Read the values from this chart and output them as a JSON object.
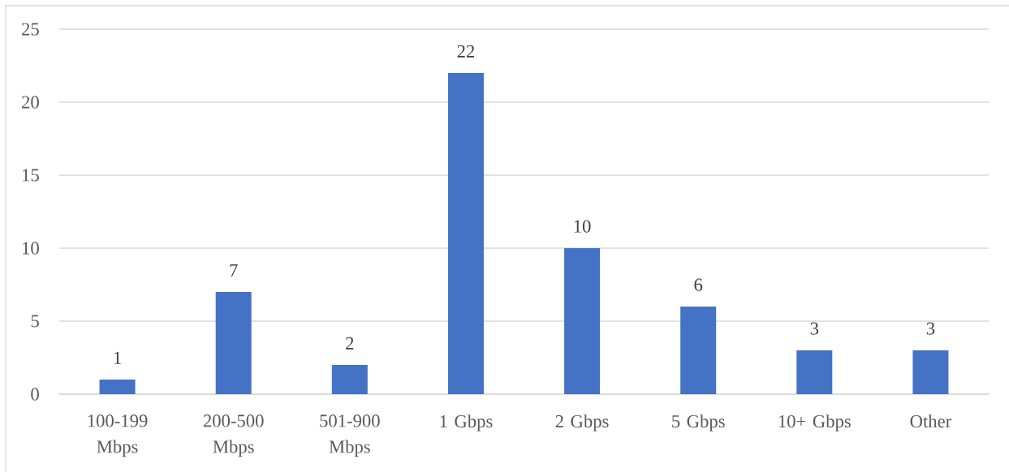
{
  "chart_data": {
    "type": "bar",
    "categories": [
      "100-199 Mbps",
      "200-500 Mbps",
      "501-900 Mbps",
      "1 Gbps",
      "2 Gbps",
      "5 Gbps",
      "10+ Gbps",
      "Other"
    ],
    "values": [
      1,
      7,
      2,
      22,
      10,
      6,
      3,
      3
    ],
    "color": "#4472c4",
    "ylim": [
      0,
      25
    ],
    "yticks": [
      0,
      5,
      10,
      15,
      20,
      25
    ],
    "grid": "y",
    "data_labels": true
  }
}
